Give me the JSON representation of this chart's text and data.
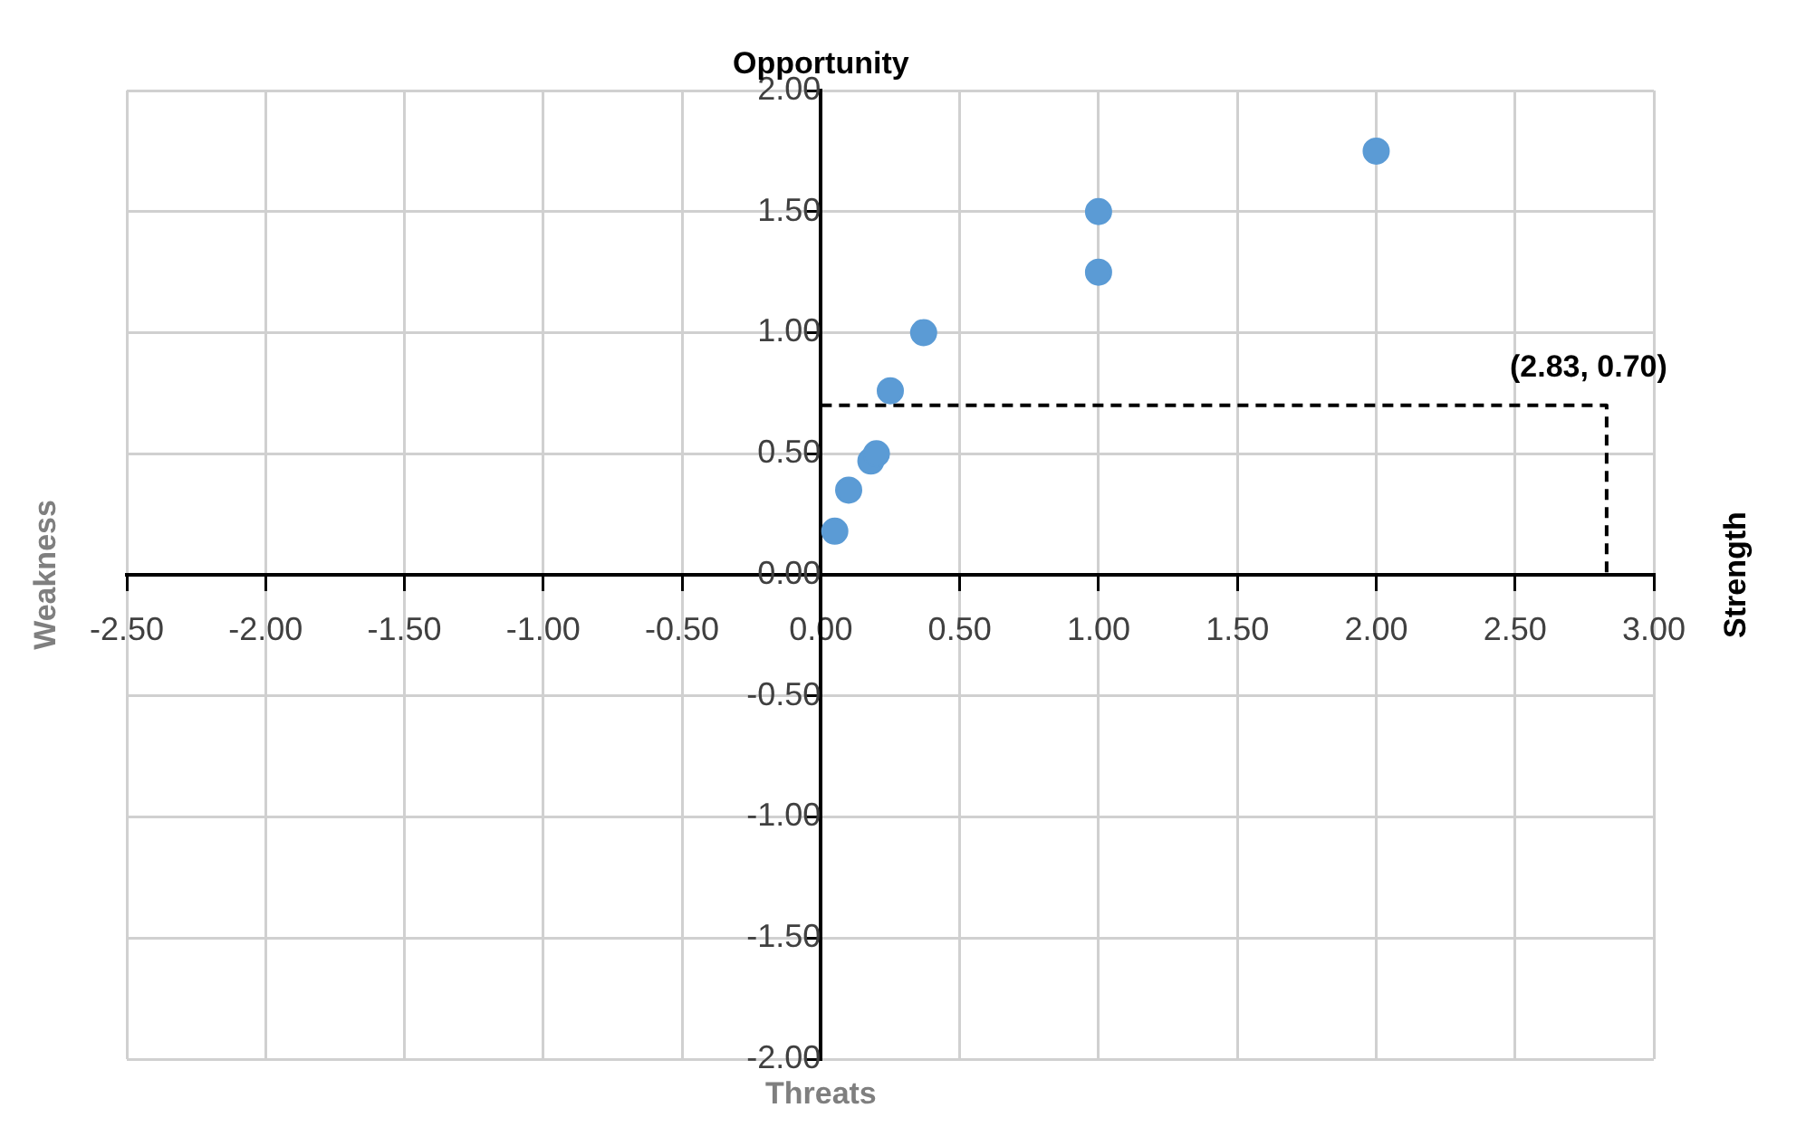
{
  "chart_data": {
    "type": "scatter",
    "legend": false,
    "grid": true,
    "marker": "circle",
    "xlim": [
      -2.5,
      3
    ],
    "ylim": [
      -2,
      2
    ],
    "xticks": [
      {
        "value": -2.5,
        "label": "-2.50"
      },
      {
        "value": -2,
        "label": "-2.00"
      },
      {
        "value": -1.5,
        "label": "-1.50"
      },
      {
        "value": -1,
        "label": "-1.00"
      },
      {
        "value": -0.5,
        "label": "-0.50"
      },
      {
        "value": 0,
        "label": "0.00"
      },
      {
        "value": 0.5,
        "label": "0.50"
      },
      {
        "value": 1,
        "label": "1.00"
      },
      {
        "value": 1.5,
        "label": "1.50"
      },
      {
        "value": 2,
        "label": "2.00"
      },
      {
        "value": 2.5,
        "label": "2.50"
      },
      {
        "value": 3,
        "label": "3.00"
      }
    ],
    "yticks": [
      {
        "value": -2,
        "label": "-2.00"
      },
      {
        "value": -1.5,
        "label": "-1.50"
      },
      {
        "value": -1,
        "label": "-1.00"
      },
      {
        "value": -0.5,
        "label": "-0.50"
      },
      {
        "value": 0,
        "label": "0.00"
      },
      {
        "value": 0.5,
        "label": "0.50"
      },
      {
        "value": 1,
        "label": "1.00"
      },
      {
        "value": 1.5,
        "label": "1.50"
      },
      {
        "value": 2,
        "label": "2.00"
      }
    ],
    "series": [
      {
        "type": "scatter",
        "color": "#5b9bd5",
        "x": [
          0.05,
          0.1,
          0.18,
          0.2,
          0.25,
          0.37,
          1.0,
          1.0,
          2.0
        ],
        "values": [
          0.18,
          0.35,
          0.47,
          0.5,
          0.76,
          1.0,
          1.25,
          1.5,
          1.75
        ]
      },
      {
        "type": "line",
        "color": "#000000",
        "line_style": "dashed",
        "marker": "none",
        "x": [
          0,
          2.83,
          2.83
        ],
        "values": [
          0.7,
          0.7,
          0
        ]
      }
    ],
    "annotations": [
      "Opportunity",
      "Threats",
      "Weakness",
      "Strength",
      {
        "text": "(2.83, 0.70)",
        "x": 2.83,
        "y": 0.7
      }
    ]
  }
}
